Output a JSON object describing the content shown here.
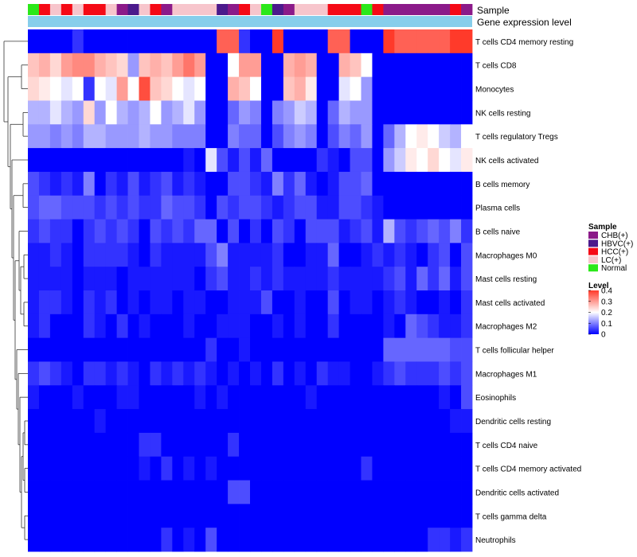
{
  "chart_data": {
    "type": "heatmap",
    "title": "",
    "annotation_tracks": [
      "Sample",
      "Gene expression level"
    ],
    "legend_sample": {
      "title": "Sample",
      "entries": [
        {
          "label": "CHB(+)",
          "color": "#8B1A89"
        },
        {
          "label": "HBVC(+)",
          "color": "#4B1A8C"
        },
        {
          "label": "HCC(+)",
          "color": "#F50A16"
        },
        {
          "label": "LC(+)",
          "color": "#F7C5CC"
        },
        {
          "label": "Normal",
          "color": "#2BE81A"
        }
      ]
    },
    "legend_level": {
      "title": "Level",
      "ticks": [
        0.4,
        0.3,
        0.2,
        0.1,
        0
      ],
      "range": [
        0,
        0.4
      ],
      "colors": {
        "low": "#0000FF",
        "mid": "#FFFFFF",
        "high": "#FF3A2A"
      }
    },
    "sample_track": [
      "Normal",
      "HCC(+)",
      "LC(+)",
      "HCC(+)",
      "LC(+)",
      "HCC(+)",
      "HCC(+)",
      "LC(+)",
      "CHB(+)",
      "HBVC(+)",
      "LC(+)",
      "HCC(+)",
      "CHB(+)",
      "LC(+)",
      "LC(+)",
      "LC(+)",
      "LC(+)",
      "HBVC(+)",
      "CHB(+)",
      "HCC(+)",
      "LC(+)",
      "Normal",
      "HBVC(+)",
      "CHB(+)",
      "LC(+)",
      "LC(+)",
      "LC(+)",
      "HCC(+)",
      "HCC(+)",
      "HCC(+)",
      "Normal",
      "HCC(+)",
      "CHB(+)",
      "CHB(+)",
      "CHB(+)",
      "CHB(+)",
      "CHB(+)",
      "CHB(+)",
      "HCC(+)",
      "CHB(+)"
    ],
    "gene_track_color": "#87CEEB",
    "rows": [
      "T cells CD4 memory resting",
      "T cells CD8",
      "Monocytes",
      "NK cells resting",
      "T cells regulatory  Tregs",
      "NK cells activated",
      "B cells memory",
      "Plasma cells",
      "B cells naive",
      "Macrophages M0",
      "Mast cells resting",
      "Mast cells activated",
      "Macrophages M2",
      "T cells follicular helper",
      "Macrophages M1",
      "Eosinophils",
      "Dendritic cells resting",
      "T cells CD4 naive",
      "T cells CD4 memory activated",
      "Dendritic cells activated",
      "T cells gamma delta",
      "Neutrophils"
    ],
    "values": [
      [
        0,
        0,
        0,
        0,
        0.04,
        0,
        0,
        0,
        0,
        0,
        0,
        0,
        0,
        0,
        0,
        0,
        0,
        0.36,
        0.36,
        0.04,
        0,
        0,
        0.4,
        0,
        0,
        0,
        0,
        0.36,
        0.36,
        0,
        0,
        0,
        0.4,
        0.36,
        0.36,
        0.36,
        0.36,
        0.36,
        0.4,
        0.4
      ],
      [
        0.26,
        0.28,
        0.24,
        0.3,
        0.32,
        0.32,
        0.28,
        0.26,
        0.24,
        0.12,
        0.26,
        0.28,
        0.26,
        0.3,
        0.34,
        0.3,
        0,
        0,
        0.2,
        0.3,
        0.3,
        0,
        0,
        0.28,
        0.3,
        0.28,
        0,
        0,
        0.28,
        0.26,
        0.2,
        0,
        0,
        0,
        0,
        0,
        0,
        0,
        0,
        0
      ],
      [
        0.24,
        0.22,
        0.2,
        0.18,
        0.2,
        0.04,
        0.2,
        0.18,
        0.3,
        0.2,
        0.38,
        0.26,
        0.24,
        0.2,
        0.18,
        0.2,
        0,
        0,
        0.28,
        0.26,
        0.2,
        0,
        0,
        0.26,
        0.28,
        0.22,
        0,
        0,
        0.18,
        0.2,
        0.12,
        0,
        0,
        0,
        0,
        0,
        0,
        0,
        0,
        0
      ],
      [
        0.14,
        0.14,
        0.18,
        0.14,
        0.12,
        0.24,
        0.12,
        0.2,
        0.14,
        0.12,
        0.14,
        0.2,
        0.12,
        0.14,
        0.18,
        0.12,
        0,
        0,
        0.08,
        0.12,
        0.1,
        0,
        0.1,
        0.12,
        0.16,
        0.14,
        0,
        0.08,
        0.14,
        0.12,
        0.12,
        0,
        0,
        0,
        0,
        0,
        0,
        0,
        0,
        0
      ],
      [
        0.12,
        0.12,
        0.1,
        0.12,
        0.1,
        0.14,
        0.14,
        0.12,
        0.12,
        0.12,
        0.14,
        0.12,
        0.12,
        0.1,
        0.1,
        0.1,
        0,
        0,
        0.1,
        0.08,
        0.08,
        0,
        0.06,
        0.1,
        0.12,
        0.1,
        0,
        0.06,
        0.1,
        0.08,
        0.12,
        0,
        0.08,
        0.14,
        0.2,
        0.22,
        0.2,
        0.16,
        0.14,
        0.2
      ],
      [
        0,
        0,
        0,
        0,
        0,
        0,
        0,
        0,
        0,
        0,
        0,
        0,
        0,
        0,
        0.02,
        0,
        0.18,
        0.06,
        0.02,
        0.06,
        0.02,
        0.08,
        0,
        0,
        0,
        0,
        0.04,
        0.02,
        0,
        0.06,
        0.06,
        0,
        0.12,
        0.16,
        0.22,
        0.2,
        0.24,
        0.2,
        0.18,
        0.22
      ],
      [
        0.06,
        0.04,
        0.02,
        0.04,
        0.02,
        0.1,
        0,
        0.04,
        0.02,
        0.06,
        0.02,
        0.04,
        0.06,
        0.02,
        0.04,
        0.02,
        0,
        0,
        0.06,
        0.06,
        0.04,
        0.02,
        0.1,
        0.04,
        0.08,
        0.02,
        0,
        0.02,
        0.06,
        0.06,
        0.08,
        0,
        0,
        0,
        0,
        0,
        0,
        0,
        0,
        0
      ],
      [
        0.06,
        0.08,
        0.08,
        0.06,
        0.06,
        0.06,
        0.04,
        0.06,
        0.04,
        0.06,
        0.04,
        0.04,
        0.08,
        0.06,
        0.06,
        0.04,
        0,
        0.06,
        0.04,
        0.06,
        0.06,
        0.04,
        0.02,
        0.04,
        0.06,
        0.06,
        0.02,
        0.02,
        0.06,
        0.06,
        0.04,
        0.02,
        0,
        0,
        0,
        0,
        0,
        0,
        0,
        0
      ],
      [
        0.04,
        0.06,
        0.04,
        0.04,
        0,
        0.04,
        0.06,
        0.04,
        0.06,
        0.04,
        0,
        0.06,
        0.04,
        0.06,
        0.04,
        0.08,
        0.08,
        0,
        0.06,
        0,
        0.04,
        0,
        0.06,
        0.04,
        0,
        0.06,
        0.06,
        0.06,
        0.02,
        0.04,
        0.06,
        0.02,
        0.14,
        0.06,
        0.04,
        0.06,
        0.08,
        0.06,
        0.1,
        0.04
      ],
      [
        0.02,
        0.02,
        0.04,
        0.02,
        0,
        0.04,
        0.04,
        0.04,
        0.04,
        0.02,
        0,
        0.04,
        0.02,
        0.02,
        0.02,
        0.02,
        0.06,
        0.1,
        0.02,
        0.02,
        0.02,
        0.02,
        0.04,
        0,
        0,
        0.02,
        0.02,
        0.08,
        0,
        0,
        0.02,
        0.04,
        0.02,
        0.04,
        0.02,
        0,
        0.04,
        0.06,
        0,
        0.06
      ],
      [
        0.02,
        0.02,
        0.02,
        0.02,
        0,
        0.02,
        0.02,
        0.02,
        0,
        0.02,
        0.02,
        0.02,
        0.02,
        0.02,
        0.02,
        0,
        0.04,
        0.06,
        0.02,
        0.02,
        0.04,
        0.02,
        0.04,
        0.02,
        0.02,
        0.02,
        0.02,
        0.04,
        0.02,
        0.02,
        0.02,
        0.02,
        0.04,
        0.06,
        0.02,
        0.08,
        0.04,
        0.08,
        0.02,
        0.06
      ],
      [
        0.02,
        0.04,
        0.04,
        0.02,
        0,
        0.04,
        0.02,
        0.04,
        0,
        0.02,
        0,
        0.02,
        0.02,
        0,
        0.02,
        0.02,
        0,
        0,
        0.02,
        0.02,
        0.02,
        0.06,
        0,
        0,
        0.02,
        0,
        0,
        0.06,
        0,
        0.02,
        0.02,
        0,
        0.02,
        0.04,
        0.02,
        0,
        0,
        0.02,
        0,
        0.04
      ],
      [
        0.02,
        0.04,
        0,
        0,
        0,
        0.04,
        0.02,
        0,
        0.04,
        0,
        0.02,
        0,
        0,
        0,
        0.02,
        0,
        0,
        0.02,
        0.02,
        0.02,
        0,
        0,
        0.02,
        0,
        0.02,
        0,
        0,
        0.04,
        0,
        0,
        0,
        0,
        0.02,
        0,
        0.08,
        0.06,
        0.04,
        0.02,
        0.02,
        0.04
      ],
      [
        0,
        0,
        0,
        0,
        0,
        0,
        0,
        0,
        0,
        0,
        0,
        0,
        0,
        0,
        0,
        0,
        0.04,
        0,
        0,
        0.02,
        0,
        0,
        0,
        0,
        0,
        0,
        0,
        0,
        0,
        0,
        0,
        0,
        0.08,
        0.08,
        0.08,
        0.08,
        0.08,
        0.08,
        0.06,
        0.06
      ],
      [
        0.04,
        0.06,
        0.04,
        0.02,
        0,
        0.04,
        0.04,
        0.02,
        0.04,
        0.02,
        0,
        0.04,
        0.02,
        0.04,
        0.02,
        0.04,
        0.02,
        0,
        0.02,
        0,
        0.02,
        0,
        0.04,
        0,
        0.02,
        0,
        0.04,
        0.02,
        0.02,
        0,
        0,
        0.02,
        0.04,
        0.06,
        0.04,
        0.04,
        0.04,
        0.06,
        0.04,
        0.06
      ],
      [
        0.02,
        0,
        0,
        0,
        0.02,
        0,
        0,
        0,
        0.02,
        0.02,
        0,
        0,
        0,
        0,
        0,
        0.02,
        0,
        0.02,
        0,
        0,
        0,
        0,
        0,
        0,
        0,
        0.02,
        0,
        0,
        0,
        0,
        0,
        0,
        0,
        0,
        0,
        0,
        0,
        0.02,
        0,
        0.06
      ],
      [
        0,
        0,
        0,
        0,
        0,
        0,
        0.02,
        0,
        0,
        0,
        0,
        0,
        0,
        0,
        0,
        0,
        0,
        0,
        0,
        0,
        0,
        0,
        0,
        0,
        0,
        0,
        0,
        0,
        0,
        0,
        0,
        0,
        0,
        0,
        0,
        0,
        0,
        0,
        0.02,
        0.02
      ],
      [
        0,
        0,
        0,
        0,
        0,
        0,
        0,
        0,
        0,
        0,
        0.04,
        0.04,
        0,
        0,
        0,
        0,
        0,
        0,
        0.04,
        0,
        0,
        0,
        0,
        0,
        0,
        0,
        0,
        0,
        0,
        0,
        0,
        0,
        0,
        0,
        0,
        0,
        0,
        0,
        0,
        0
      ],
      [
        0,
        0,
        0,
        0,
        0,
        0,
        0,
        0,
        0,
        0,
        0.02,
        0,
        0.04,
        0,
        0.02,
        0,
        0.02,
        0,
        0,
        0,
        0,
        0,
        0,
        0,
        0,
        0,
        0,
        0,
        0,
        0,
        0.04,
        0,
        0,
        0,
        0,
        0,
        0,
        0,
        0,
        0
      ],
      [
        0,
        0,
        0,
        0,
        0,
        0,
        0,
        0,
        0,
        0,
        0,
        0,
        0,
        0,
        0,
        0,
        0,
        0,
        0.06,
        0.06,
        0,
        0,
        0,
        0,
        0,
        0,
        0,
        0,
        0,
        0,
        0,
        0,
        0,
        0,
        0,
        0,
        0,
        0,
        0,
        0
      ],
      [
        0,
        0,
        0,
        0,
        0,
        0,
        0,
        0,
        0,
        0,
        0,
        0,
        0,
        0,
        0,
        0,
        0,
        0,
        0,
        0,
        0,
        0,
        0,
        0,
        0,
        0,
        0,
        0,
        0,
        0,
        0,
        0,
        0,
        0,
        0,
        0,
        0,
        0,
        0,
        0
      ],
      [
        0,
        0,
        0,
        0,
        0,
        0,
        0,
        0,
        0,
        0,
        0,
        0,
        0.04,
        0,
        0.02,
        0,
        0.06,
        0,
        0,
        0,
        0,
        0,
        0,
        0,
        0,
        0,
        0,
        0,
        0,
        0,
        0,
        0,
        0,
        0,
        0,
        0,
        0.04,
        0.04,
        0.02,
        0.04
      ]
    ],
    "xlabel": "",
    "ylabel": ""
  }
}
